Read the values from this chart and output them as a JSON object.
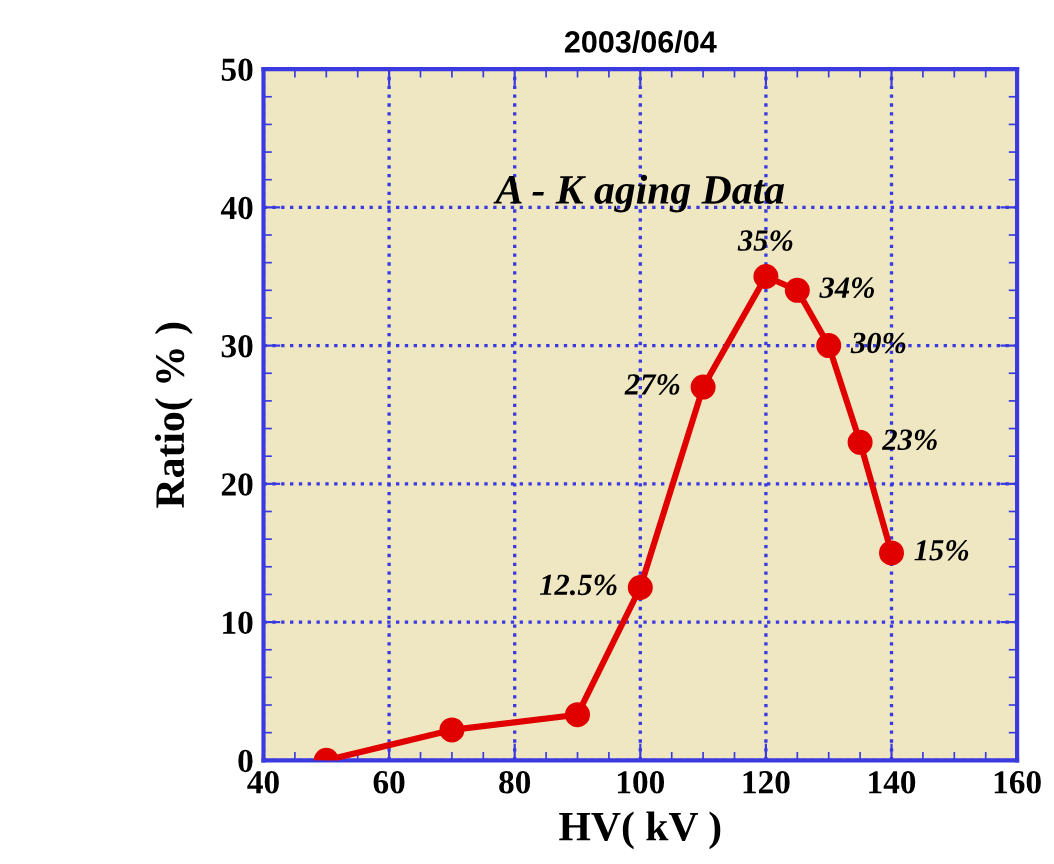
{
  "chart_data": {
    "type": "line",
    "title": "2003/06/04",
    "xlabel": "HV( kV )",
    "ylabel": "Ratio( % )",
    "annotations": [
      "A - K aging Data"
    ],
    "x": [
      50,
      70,
      90,
      100,
      110,
      120,
      125,
      130,
      135,
      140
    ],
    "series": [
      {
        "color": "#e00000",
        "values": [
          0,
          2.2,
          3.3,
          12.5,
          27,
          35,
          34,
          30,
          23,
          15
        ],
        "value_labels": [
          null,
          null,
          null,
          "12.5%",
          "27%",
          "35%",
          "34%",
          "30%",
          "23%",
          "15%"
        ]
      }
    ],
    "xlim": [
      40,
      160
    ],
    "xticks": [
      40,
      60,
      80,
      100,
      120,
      140,
      160
    ],
    "ylim": [
      0,
      50
    ],
    "yticks": [
      0,
      10,
      20,
      30,
      40,
      50
    ],
    "grid": true,
    "marker": "circle",
    "line_style": "solid",
    "legend": false
  }
}
